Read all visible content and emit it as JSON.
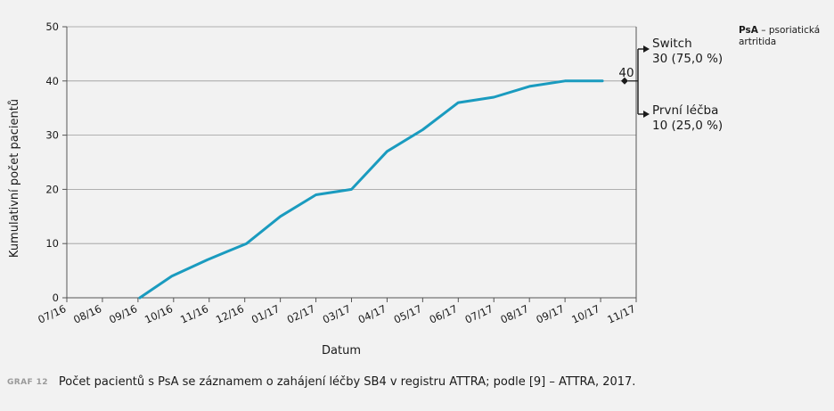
{
  "chart_data": {
    "type": "line",
    "xlabel": "Datum",
    "ylabel": "Kumulativní počet pacientů",
    "ylim": [
      0,
      50
    ],
    "yticks": [
      "0",
      "10",
      "20",
      "30",
      "40",
      "50"
    ],
    "xticks": [
      "07/16",
      "08/16",
      "09/16",
      "10/16",
      "11/16",
      "12/16",
      "01/17",
      "02/17",
      "03/17",
      "04/17",
      "05/17",
      "06/17",
      "07/17",
      "08/17",
      "09/17",
      "10/17",
      "11/17"
    ],
    "series": [
      {
        "color": "#1a9bbf",
        "points": [
          [
            2.05,
            0
          ],
          [
            2.95,
            4
          ],
          [
            3.95,
            7
          ],
          [
            4.5,
            8.5
          ],
          [
            5.05,
            10
          ],
          [
            6,
            15
          ],
          [
            7,
            19
          ],
          [
            8,
            20
          ],
          [
            9,
            27
          ],
          [
            10,
            31
          ],
          [
            11,
            36
          ],
          [
            12,
            37
          ],
          [
            13,
            39
          ],
          [
            14,
            40
          ],
          [
            15.05,
            40
          ]
        ]
      }
    ],
    "grid": "horizontal",
    "end_label": "40",
    "annotations": [
      {
        "line1": "Switch",
        "line2": "30 (75,0 %)"
      },
      {
        "line1": "První léčba",
        "line2": "10 (25,0 %)"
      }
    ]
  },
  "note": {
    "abbr": "PsA",
    "text": " – psoriatická artritida"
  },
  "caption": {
    "label": "GRAF 12",
    "text": "Počet pacientů s PsA se záznamem o zahájení léčby SB4 v registru ATTRA; podle [9] – ATTRA, 2017."
  }
}
